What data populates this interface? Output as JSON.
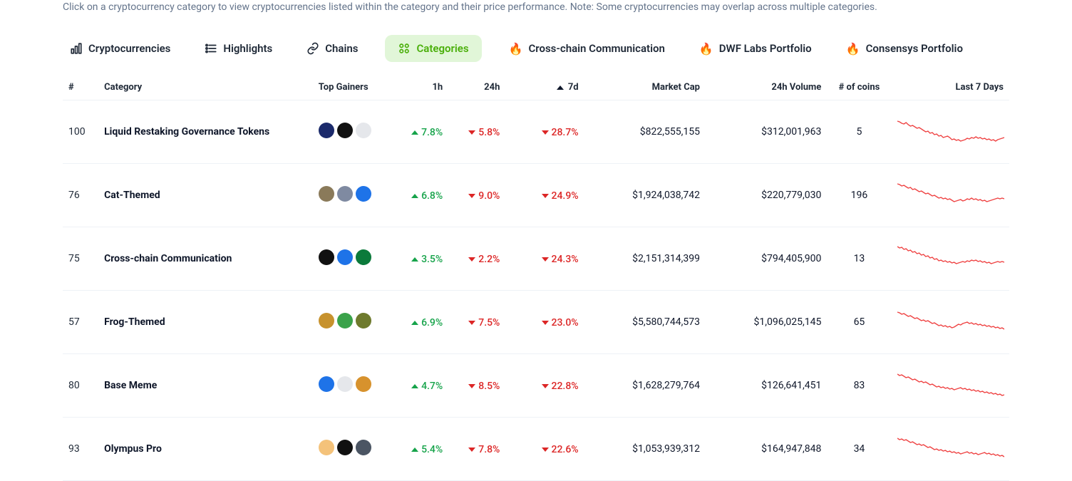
{
  "intro_text": "Click on a cryptocurrency category to view cryptocurrencies listed within the category and their price performance. Note: Some cryptocurrencies may overlap across multiple categories.",
  "colors": {
    "up": "#16a34a",
    "down": "#dc2626",
    "text": "#1f2937",
    "muted": "#64748b",
    "active_bg": "#e1f6d8",
    "active_fg": "#4aaf0a",
    "spark_stroke": "#ef4444",
    "border": "#eef2f6"
  },
  "tabs": [
    {
      "id": "cryptos",
      "label": "Cryptocurrencies",
      "icon": "ranking",
      "active": false
    },
    {
      "id": "highlights",
      "label": "Highlights",
      "icon": "list",
      "active": false
    },
    {
      "id": "chains",
      "label": "Chains",
      "icon": "link",
      "active": false
    },
    {
      "id": "categories",
      "label": "Categories",
      "icon": "categories",
      "active": true
    },
    {
      "id": "ccc",
      "label": "Cross-chain Communication",
      "icon": "fire",
      "active": false
    },
    {
      "id": "dwf",
      "label": "DWF Labs Portfolio",
      "icon": "fire",
      "active": false
    },
    {
      "id": "consensys",
      "label": "Consensys Portfolio",
      "icon": "fire",
      "active": false
    }
  ],
  "columns": {
    "rank": "#",
    "category": "Category",
    "top_gainers": "Top Gainers",
    "h1": "1h",
    "h24": "24h",
    "d7": "7d",
    "marketcap": "Market Cap",
    "volume24": "24h Volume",
    "num_coins": "# of coins",
    "last7": "Last 7 Days"
  },
  "sort": {
    "column": "d7",
    "direction": "asc"
  },
  "spark": {
    "width": 150,
    "height": 44,
    "stroke_width": 1.4,
    "ylim": [
      0,
      44
    ]
  },
  "rows": [
    {
      "rank": "100",
      "category": "Liquid Restaking Governance Tokens",
      "gainer_colors": [
        "#1b2a6b",
        "#111111",
        "#e5e7eb"
      ],
      "h1": {
        "dir": "up",
        "value": "7.8%"
      },
      "h24": {
        "dir": "down",
        "value": "5.8%"
      },
      "d7": {
        "dir": "down",
        "value": "28.7%"
      },
      "marketcap": "$822,555,155",
      "volume24": "$312,001,963",
      "num_coins": "5",
      "spark_points": [
        7,
        8,
        10,
        11,
        9,
        12,
        14,
        13,
        15,
        17,
        16,
        18,
        20,
        22,
        21,
        24,
        23,
        26,
        25,
        28,
        27,
        30,
        29,
        28,
        30,
        33,
        32,
        34,
        33,
        35,
        34,
        33,
        31,
        32,
        30,
        31,
        29,
        31,
        30,
        32,
        31,
        33,
        32,
        34,
        33,
        35,
        33,
        32,
        31,
        30
      ]
    },
    {
      "rank": "76",
      "category": "Cat-Themed",
      "gainer_colors": [
        "#8a7a5a",
        "#7f8aa1",
        "#1e73e8"
      ],
      "h1": {
        "dir": "up",
        "value": "6.8%"
      },
      "h24": {
        "dir": "down",
        "value": "9.0%"
      },
      "d7": {
        "dir": "down",
        "value": "24.9%"
      },
      "marketcap": "$1,924,038,742",
      "volume24": "$220,779,030",
      "num_coins": "196",
      "spark_points": [
        6,
        7,
        9,
        8,
        10,
        12,
        11,
        14,
        13,
        15,
        17,
        16,
        18,
        20,
        19,
        21,
        23,
        22,
        24,
        26,
        25,
        27,
        26,
        28,
        27,
        29,
        31,
        30,
        29,
        28,
        30,
        29,
        27,
        28,
        26,
        28,
        27,
        29,
        28,
        30,
        29,
        31,
        30,
        29,
        28,
        27,
        26,
        27,
        26,
        27
      ]
    },
    {
      "rank": "75",
      "category": "Cross-chain Communication",
      "gainer_colors": [
        "#111111",
        "#1e73e8",
        "#0b7a3b"
      ],
      "h1": {
        "dir": "up",
        "value": "3.5%"
      },
      "h24": {
        "dir": "down",
        "value": "2.2%"
      },
      "d7": {
        "dir": "down",
        "value": "24.3%"
      },
      "marketcap": "$2,151,314,399",
      "volume24": "$794,405,900",
      "num_coins": "13",
      "spark_points": [
        5,
        7,
        6,
        9,
        8,
        11,
        10,
        13,
        12,
        15,
        14,
        17,
        16,
        19,
        18,
        21,
        20,
        23,
        22,
        25,
        24,
        26,
        25,
        27,
        26,
        28,
        27,
        29,
        28,
        27,
        26,
        27,
        25,
        26,
        24,
        25,
        24,
        26,
        25,
        27,
        26,
        28,
        27,
        29,
        28,
        27,
        26,
        27,
        26,
        27
      ]
    },
    {
      "rank": "57",
      "category": "Frog-Themed",
      "gainer_colors": [
        "#c7922d",
        "#3aa24a",
        "#6e7a2d"
      ],
      "h1": {
        "dir": "up",
        "value": "6.9%"
      },
      "h24": {
        "dir": "down",
        "value": "7.5%"
      },
      "d7": {
        "dir": "down",
        "value": "23.0%"
      },
      "marketcap": "$5,580,744,573",
      "volume24": "$1,096,025,145",
      "num_coins": "65",
      "spark_points": [
        8,
        9,
        11,
        10,
        12,
        14,
        13,
        15,
        17,
        16,
        18,
        20,
        19,
        21,
        20,
        22,
        24,
        23,
        25,
        27,
        26,
        28,
        27,
        29,
        28,
        30,
        29,
        27,
        25,
        26,
        24,
        23,
        22,
        24,
        23,
        25,
        24,
        26,
        25,
        27,
        26,
        28,
        27,
        29,
        28,
        30,
        29,
        31,
        30,
        32
      ]
    },
    {
      "rank": "80",
      "category": "Base Meme",
      "gainer_colors": [
        "#1e73e8",
        "#e5e7eb",
        "#d7922d"
      ],
      "h1": {
        "dir": "up",
        "value": "4.7%"
      },
      "h24": {
        "dir": "down",
        "value": "8.5%"
      },
      "d7": {
        "dir": "down",
        "value": "22.8%"
      },
      "marketcap": "$1,628,279,764",
      "volume24": "$126,641,451",
      "num_coins": "83",
      "spark_points": [
        6,
        8,
        7,
        9,
        11,
        10,
        12,
        14,
        13,
        15,
        17,
        16,
        18,
        17,
        19,
        21,
        20,
        22,
        24,
        23,
        25,
        24,
        26,
        25,
        27,
        26,
        28,
        27,
        26,
        25,
        27,
        26,
        28,
        27,
        29,
        28,
        30,
        29,
        31,
        30,
        32,
        31,
        33,
        32,
        34,
        33,
        35,
        34,
        36,
        35
      ]
    },
    {
      "rank": "93",
      "category": "Olympus Pro",
      "gainer_colors": [
        "#f4c27a",
        "#111111",
        "#4b5563"
      ],
      "h1": {
        "dir": "up",
        "value": "5.4%"
      },
      "h24": {
        "dir": "down",
        "value": "7.8%"
      },
      "d7": {
        "dir": "down",
        "value": "22.6%"
      },
      "marketcap": "$1,053,939,312",
      "volume24": "$164,947,848",
      "num_coins": "34",
      "spark_points": [
        7,
        9,
        8,
        10,
        9,
        11,
        13,
        12,
        14,
        16,
        15,
        17,
        16,
        18,
        20,
        19,
        21,
        23,
        22,
        24,
        23,
        25,
        24,
        26,
        25,
        27,
        26,
        28,
        27,
        29,
        28,
        27,
        26,
        28,
        27,
        29,
        28,
        30,
        29,
        28,
        27,
        29,
        28,
        30,
        29,
        31,
        30,
        32,
        31,
        33
      ]
    }
  ]
}
